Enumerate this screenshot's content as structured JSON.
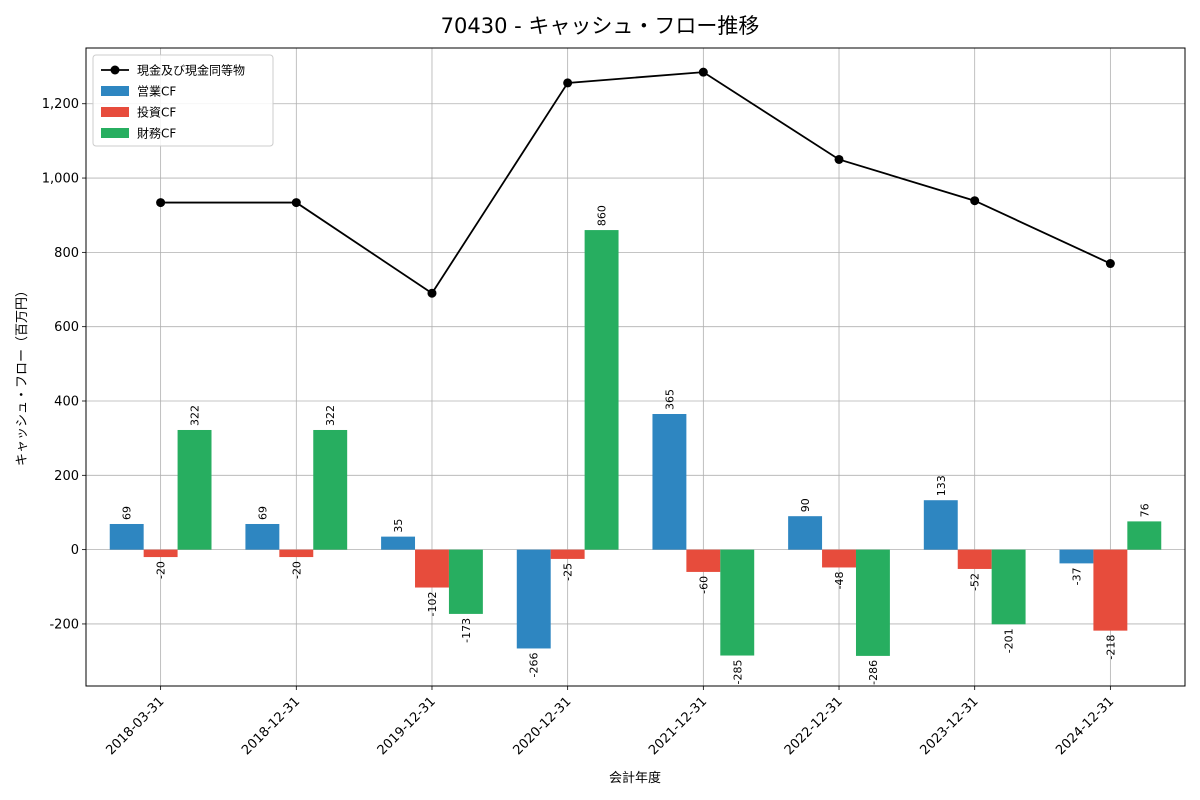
{
  "chart_data": {
    "type": "bar",
    "title": "70430 - キャッシュ・フロー推移",
    "xlabel": "会計年度",
    "ylabel": "キャッシュ・フロー（百万円）",
    "categories": [
      "2018-03-31",
      "2018-12-31",
      "2019-12-31",
      "2020-12-31",
      "2021-12-31",
      "2022-12-31",
      "2023-12-31",
      "2024-12-31"
    ],
    "series": [
      {
        "name": "営業CF",
        "type": "bar",
        "color": "#2e86c1",
        "values": [
          69,
          69,
          35,
          -266,
          365,
          90,
          133,
          -37
        ]
      },
      {
        "name": "投資CF",
        "type": "bar",
        "color": "#e74c3c",
        "values": [
          -20,
          -20,
          -102,
          -25,
          -60,
          -48,
          -52,
          -218
        ]
      },
      {
        "name": "財務CF",
        "type": "bar",
        "color": "#27ae60",
        "values": [
          322,
          322,
          -173,
          860,
          -285,
          -286,
          -201,
          76
        ]
      },
      {
        "name": "現金及び現金同等物",
        "type": "line",
        "color": "#000000",
        "values": [
          934,
          934,
          690,
          1256,
          1285,
          1050,
          939,
          770
        ]
      }
    ],
    "ylim": [
      -367,
      1350
    ],
    "yticks": [
      -200,
      0,
      200,
      400,
      600,
      800,
      1000,
      1200
    ],
    "grid": true,
    "legend_position": "top-left"
  }
}
